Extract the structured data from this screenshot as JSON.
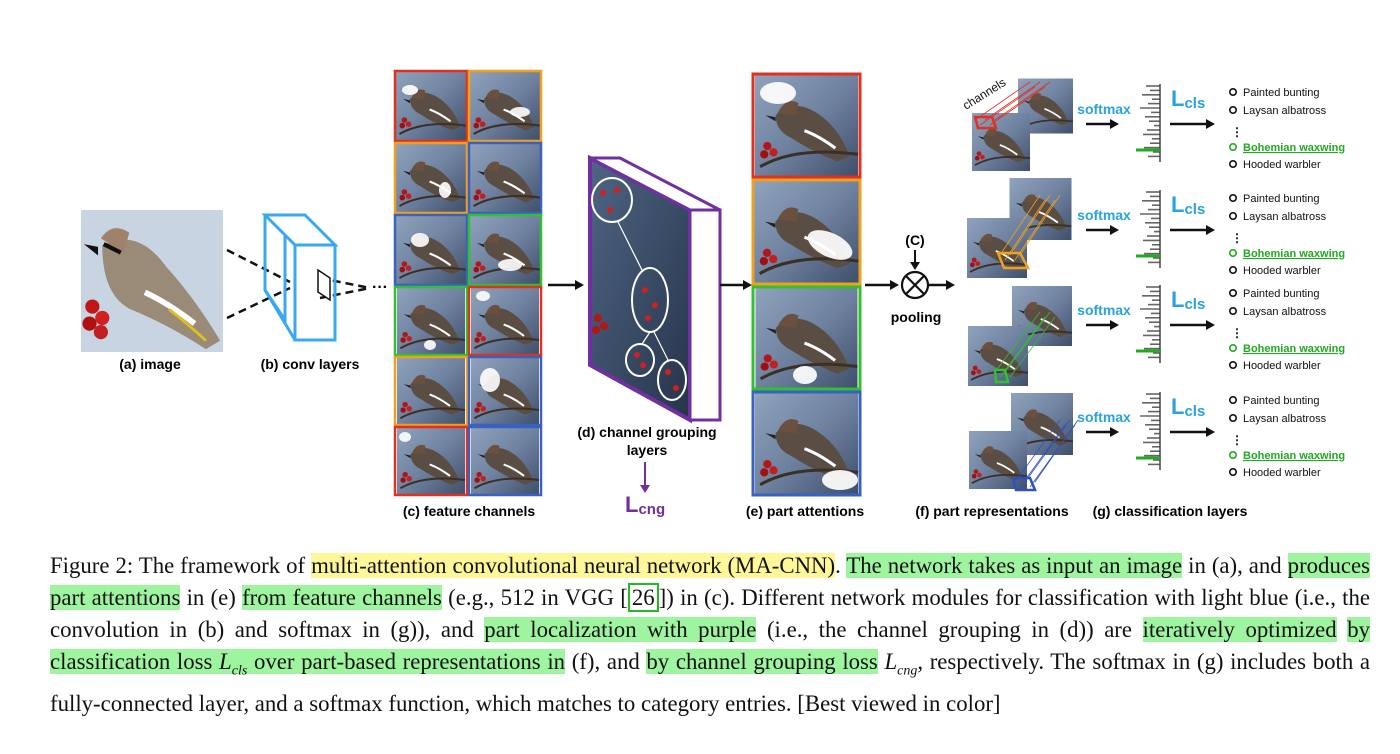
{
  "figure": {
    "labels": {
      "a": "(a) image",
      "b": "(b) conv layers",
      "c": "(c) feature channels",
      "d_line1": "(d) channel grouping",
      "d_line2": "layers",
      "e": "(e) part attentions",
      "f": "(f) part representations",
      "g": "(g) classification layers",
      "pooling": "pooling",
      "pool_symbol": "(C)",
      "channels": "channels",
      "softmax": "softmax",
      "lcls_main": "L",
      "lcls_sub": "cls",
      "lcng_main": "L",
      "lcng_sub": "cng",
      "dots": "···"
    },
    "classes": [
      "Painted bunting",
      "Laysan albatross",
      "Bohemian waxwing",
      "Hooded warbler"
    ],
    "highlighted_class": "Bohemian waxwing",
    "colors": {
      "conv_blue": "#3aa8f0",
      "grouping_purple": "#7030a0",
      "softmax_blue": "#29a3e0",
      "correct_green": "#22aa22",
      "part_red": "#e03020",
      "part_orange": "#f0a020",
      "part_green": "#30c030",
      "part_blue": "#3050c0"
    }
  },
  "caption": {
    "t1": "Figure 2: The framework of ",
    "h1": "multi-attention convolutional neural network (MA-CNN)",
    "t2": ". ",
    "h2": "The network takes as input an image",
    "t3": " in (a), and ",
    "h3": "produces part attentions",
    "t4": " in (e) ",
    "h4": "from feature channels",
    "t5": " (e.g., 512 in VGG [",
    "ref": "26",
    "t6": "]) in (c). Different network modules for classification with light blue (i.e., the convolution in (b) and softmax in (g)), and ",
    "h5": "part localization with purple",
    "t7": " (i.e., the channel grouping in (d)) are ",
    "h6": "iteratively optimized",
    "t8": " ",
    "h7a": "by classification loss ",
    "m1": "L",
    "m1sub": "cls",
    "h7b": " over part-based representations in",
    "t9": " (f), and ",
    "h8": "by channel grouping loss",
    "t10": " ",
    "m2": "L",
    "m2sub": "cng",
    "t11": ", respectively. The softmax in (g) includes both a fully-connected layer, and a softmax function, which matches to category entries. [Best viewed in color]"
  }
}
